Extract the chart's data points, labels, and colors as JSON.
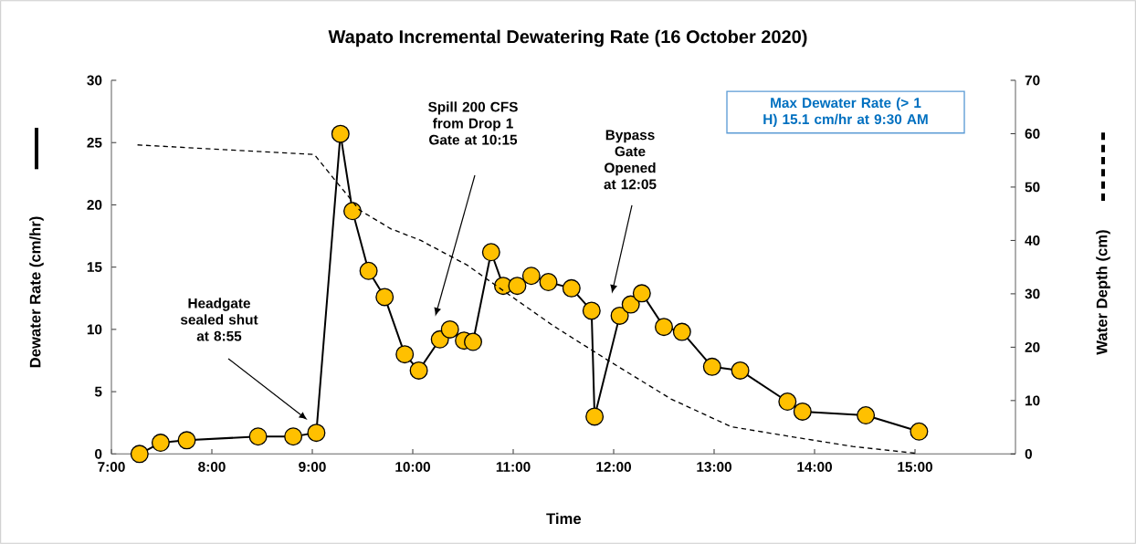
{
  "chart_data": {
    "type": "line",
    "title": "Wapato Incremental Dewatering Rate (16 October 2020)",
    "xlabel": "Time",
    "ylabel": "Dewater Rate (cm/hr)",
    "y2label": "Water Depth (cm)",
    "xlim": [
      7,
      16
    ],
    "xticks": [
      {
        "value": 7,
        "label": "7:00"
      },
      {
        "value": 8,
        "label": "8:00"
      },
      {
        "value": 9,
        "label": "9:00"
      },
      {
        "value": 10,
        "label": "10:00"
      },
      {
        "value": 11,
        "label": "11:00"
      },
      {
        "value": 12,
        "label": "12:00"
      },
      {
        "value": 13,
        "label": "13:00"
      },
      {
        "value": 14,
        "label": "14:00"
      },
      {
        "value": 15,
        "label": "15:00"
      }
    ],
    "ylim": [
      0,
      30
    ],
    "yticks": [
      0,
      5,
      10,
      15,
      20,
      25,
      30
    ],
    "y2lim": [
      0,
      70
    ],
    "y2ticks": [
      0,
      10,
      20,
      30,
      40,
      50,
      60,
      70
    ],
    "grid": false,
    "series": [
      {
        "color": "#ffc000",
        "marker": "circle",
        "line_style": "solid",
        "x": [
          7.28,
          7.49,
          7.75,
          8.46,
          8.81,
          9.04,
          9.28,
          9.4,
          9.56,
          9.72,
          9.92,
          10.06,
          10.27,
          10.37,
          10.51,
          10.6,
          10.78,
          10.9,
          11.04,
          11.18,
          11.35,
          11.58,
          11.78,
          11.81,
          12.06,
          12.17,
          12.28,
          12.5,
          12.68,
          12.98,
          13.26,
          13.73,
          13.88,
          14.51,
          15.04
        ],
        "values": [
          0,
          0.9,
          1.1,
          1.4,
          1.4,
          1.7,
          25.7,
          19.5,
          14.7,
          12.6,
          8,
          6.7,
          9.2,
          10,
          9.1,
          9,
          16.2,
          13.5,
          13.5,
          14.3,
          13.8,
          13.3,
          11.5,
          3,
          11.1,
          12,
          12.9,
          10.2,
          9.8,
          7,
          6.7,
          4.2,
          3.4,
          3.1,
          1.8
        ]
      },
      {
        "color": "#000000",
        "marker": "none",
        "line_style": "dashed",
        "axis": "y2",
        "x": [
          7.26,
          9.02,
          9.2,
          9.47,
          9.78,
          10.08,
          10.54,
          10.84,
          11.4,
          11.93,
          12.57,
          13.17,
          13.78,
          14.38,
          15.02
        ],
        "values": [
          57.9,
          56.1,
          51.9,
          45.7,
          42.2,
          40,
          35.4,
          31.4,
          24,
          17.7,
          10.3,
          5.1,
          3.2,
          1.4,
          0.1
        ]
      }
    ],
    "annotations": [
      "Headgate sealed shut at 8:55",
      "Spill 200 CFS from Drop 1 Gate at 10:15",
      "Bypass Gate Opened at 12:05",
      "Max Dewater Rate (> 1 H) 15.1 cm/hr at 9:30 AM"
    ]
  }
}
